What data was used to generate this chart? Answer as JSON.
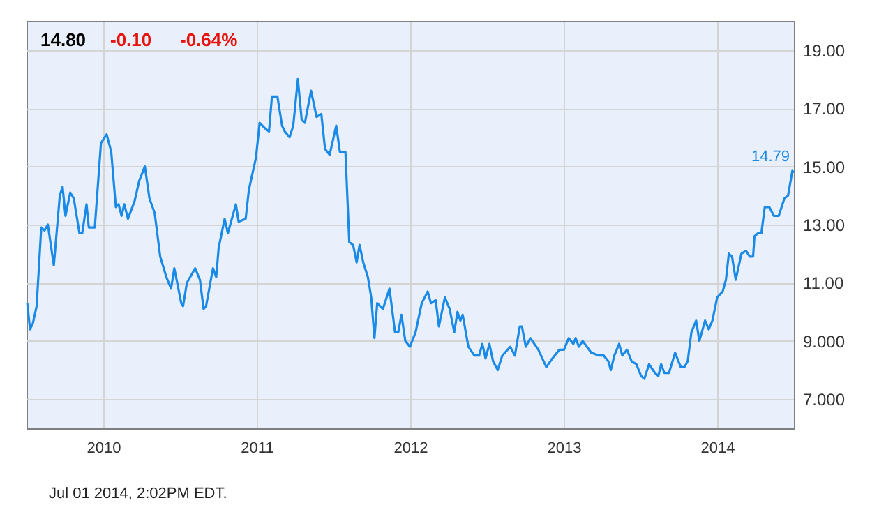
{
  "chart_data": {
    "type": "line",
    "annotations": [
      "14.80",
      "-0.10",
      "-0.64%",
      {
        "text": "14.79",
        "x": 2014.5,
        "y": 14.79
      },
      "Jul 01 2014, 2:02PM EDT."
    ],
    "xlim": [
      2009.5,
      2014.5
    ],
    "xticks": [
      2010,
      2011,
      2012,
      2013,
      2014
    ],
    "ylim": [
      6,
      20
    ],
    "yticks": [
      {
        "value": 7,
        "label": "7.000"
      },
      {
        "value": 9,
        "label": "9.000"
      },
      {
        "value": 11,
        "label": "11.00"
      },
      {
        "value": 13,
        "label": "13.00"
      },
      {
        "value": 15,
        "label": "15.00"
      },
      {
        "value": 17,
        "label": "17.00"
      },
      {
        "value": 19,
        "label": "19.00"
      }
    ],
    "grid": true,
    "marker": "none",
    "line_style": "solid",
    "series": [
      {
        "color": "#1a8ae8",
        "x": [
          2009.505,
          2009.523,
          2009.541,
          2009.566,
          2009.596,
          2009.617,
          2009.639,
          2009.678,
          2009.717,
          2009.735,
          2009.754,
          2009.785,
          2009.808,
          2009.845,
          2009.863,
          2009.891,
          2009.906,
          2009.945,
          2009.985,
          2010.022,
          2010.052,
          2010.082,
          2010.1,
          2010.119,
          2010.137,
          2010.161,
          2010.204,
          2010.234,
          2010.271,
          2010.301,
          2010.335,
          2010.371,
          2010.411,
          2010.442,
          2010.463,
          2010.508,
          2010.52,
          2010.545,
          2010.599,
          2010.63,
          2010.654,
          2010.67,
          2010.715,
          2010.736,
          2010.752,
          2010.791,
          2010.812,
          2010.864,
          2010.882,
          2010.928,
          2010.949,
          2010.995,
          2011.019,
          2011.056,
          2011.08,
          2011.099,
          2011.135,
          2011.165,
          2011.183,
          2011.214,
          2011.238,
          2011.268,
          2011.293,
          2011.314,
          2011.354,
          2011.39,
          2011.421,
          2011.445,
          2011.475,
          2011.518,
          2011.542,
          2011.578,
          2011.603,
          2011.628,
          2011.651,
          2011.67,
          2011.694,
          2011.724,
          2011.746,
          2011.767,
          2011.785,
          2011.822,
          2011.865,
          2011.901,
          2011.922,
          2011.943,
          2011.968,
          2011.998,
          2012.035,
          2012.075,
          2012.114,
          2012.135,
          2012.166,
          2012.187,
          2012.226,
          2012.257,
          2012.287,
          2012.308,
          2012.327,
          2012.342,
          2012.379,
          2012.418,
          2012.449,
          2012.47,
          2012.491,
          2012.516,
          2012.54,
          2012.57,
          2012.6,
          2012.652,
          2012.682,
          2012.714,
          2012.728,
          2012.753,
          2012.783,
          2012.835,
          2012.887,
          2012.926,
          2012.972,
          2013.002,
          2013.033,
          2013.063,
          2013.078,
          2013.099,
          2013.124,
          2013.179,
          2013.23,
          2013.261,
          2013.291,
          2013.307,
          2013.33,
          2013.361,
          2013.382,
          2013.412,
          2013.443,
          2013.474,
          2013.504,
          2013.526,
          2013.556,
          2013.595,
          2013.617,
          2013.635,
          2013.656,
          2013.686,
          2013.726,
          2013.763,
          2013.786,
          2013.808,
          2013.832,
          2013.863,
          2013.884,
          2013.921,
          2013.945,
          2013.969,
          2014.0,
          2014.036,
          2014.057,
          2014.076,
          2014.097,
          2014.121,
          2014.158,
          2014.188,
          2014.213,
          2014.234,
          2014.243,
          2014.265,
          2014.288,
          2014.31,
          2014.34,
          2014.37,
          2014.401,
          2014.438,
          2014.462,
          2014.49,
          2014.5
        ],
        "values": [
          10.3,
          9.4,
          9.6,
          10.2,
          12.9,
          12.8,
          13.0,
          11.6,
          14.0,
          14.3,
          13.3,
          14.1,
          13.9,
          12.7,
          12.7,
          13.7,
          12.9,
          12.9,
          15.8,
          16.1,
          15.5,
          13.6,
          13.7,
          13.3,
          13.7,
          13.2,
          13.8,
          14.5,
          15.0,
          13.9,
          13.4,
          11.9,
          11.2,
          10.8,
          11.5,
          10.3,
          10.2,
          11.0,
          11.5,
          11.1,
          10.1,
          10.2,
          11.5,
          11.2,
          12.2,
          13.2,
          12.7,
          13.7,
          13.1,
          13.2,
          14.2,
          15.3,
          16.5,
          16.3,
          16.2,
          17.4,
          17.4,
          16.4,
          16.2,
          16.0,
          16.4,
          18.0,
          16.6,
          16.5,
          17.6,
          16.7,
          16.8,
          15.6,
          15.4,
          16.4,
          15.5,
          15.5,
          12.4,
          12.3,
          11.7,
          12.3,
          11.7,
          11.2,
          10.5,
          9.1,
          10.3,
          10.1,
          10.8,
          9.3,
          9.3,
          9.9,
          9.0,
          8.8,
          9.3,
          10.3,
          10.7,
          10.3,
          10.4,
          9.5,
          10.5,
          10.1,
          9.3,
          10.0,
          9.7,
          9.9,
          8.8,
          8.5,
          8.5,
          8.9,
          8.4,
          8.9,
          8.3,
          8.0,
          8.5,
          8.8,
          8.5,
          9.5,
          9.5,
          8.8,
          9.1,
          8.7,
          8.1,
          8.4,
          8.7,
          8.7,
          9.1,
          8.9,
          9.1,
          8.8,
          9.0,
          8.6,
          8.5,
          8.5,
          8.3,
          8.0,
          8.5,
          8.9,
          8.5,
          8.7,
          8.3,
          8.2,
          7.8,
          7.7,
          8.2,
          7.9,
          7.8,
          8.2,
          7.9,
          7.9,
          8.6,
          8.1,
          8.1,
          8.3,
          9.3,
          9.7,
          9.0,
          9.7,
          9.4,
          9.7,
          10.5,
          10.7,
          11.1,
          12.0,
          11.9,
          11.1,
          12.0,
          12.1,
          11.9,
          11.9,
          12.6,
          12.7,
          12.7,
          13.6,
          13.6,
          13.3,
          13.3,
          13.9,
          14.0,
          14.85,
          14.79
        ]
      }
    ]
  }
}
